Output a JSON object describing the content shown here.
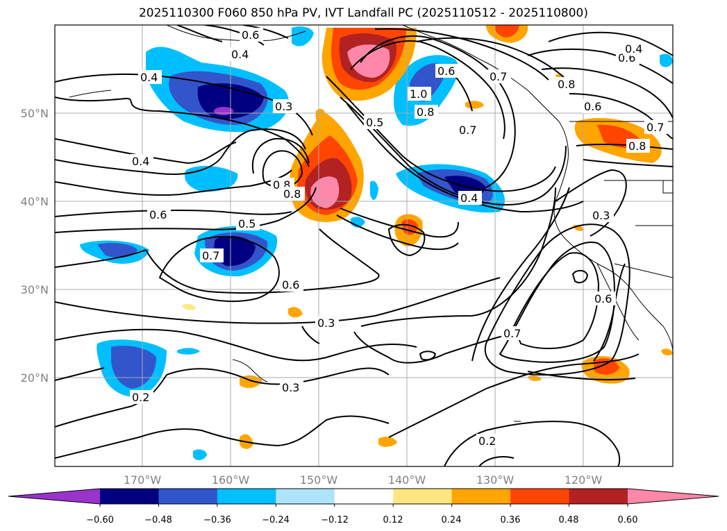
{
  "title": "2025110300 F060 850 hPa PV, IVT Landfall PC (2025110512 - 2025110800)",
  "map": {
    "lon_labels": [
      "170°W",
      "160°W",
      "150°W",
      "140°W",
      "130°W",
      "120°W"
    ],
    "lat_labels": [
      "50°N",
      "40°N",
      "30°N",
      "20°N"
    ],
    "gridlines": "on"
  },
  "colorbar": {
    "ticks": [
      "−0.60",
      "−0.48",
      "−0.36",
      "−0.24",
      "−0.12",
      "0.12",
      "0.24",
      "0.36",
      "0.48",
      "0.60"
    ],
    "colors": [
      "#9933cc",
      "#000080",
      "#3355cc",
      "#00bfff",
      "#aee3fa",
      "#ffffff",
      "#ffe680",
      "#ffa500",
      "#ff4500",
      "#b22222",
      "#ff88aa"
    ],
    "extend": "both"
  },
  "contour_labels": [
    {
      "text": "0.4"
    },
    {
      "text": "0.3"
    },
    {
      "text": "0.4"
    },
    {
      "text": "0.6"
    },
    {
      "text": "0.5"
    },
    {
      "text": "0.7"
    },
    {
      "text": "0.6"
    },
    {
      "text": "0.3"
    },
    {
      "text": "0.3"
    },
    {
      "text": "0.2"
    },
    {
      "text": "0.7"
    },
    {
      "text": "0.2"
    },
    {
      "text": "0.8"
    },
    {
      "text": "0.8"
    },
    {
      "text": "1.0"
    },
    {
      "text": "0.6"
    },
    {
      "text": "0.8"
    },
    {
      "text": "0.7"
    },
    {
      "text": "0.4"
    },
    {
      "text": "0.3"
    },
    {
      "text": "0.8"
    },
    {
      "text": "0.6"
    },
    {
      "text": "0.7"
    },
    {
      "text": "0.7"
    },
    {
      "text": "0.6"
    },
    {
      "text": "0.4"
    },
    {
      "text": "0.8"
    },
    {
      "text": "0.6"
    },
    {
      "text": "0.5"
    },
    {
      "text": "0.4"
    },
    {
      "text": "0.6"
    }
  ]
}
